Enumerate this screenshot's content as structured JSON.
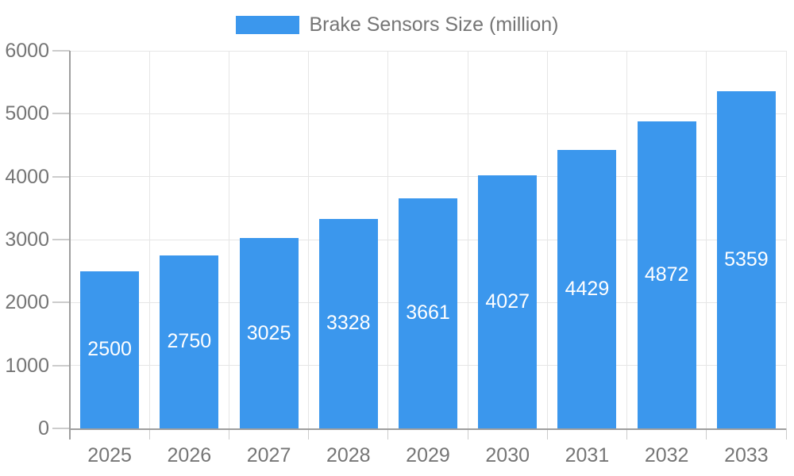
{
  "chart_data": {
    "type": "bar",
    "title": "",
    "legend_label": "Brake Sensors Size (million)",
    "legend_position": "top-center",
    "categories": [
      "2025",
      "2026",
      "2027",
      "2028",
      "2029",
      "2030",
      "2031",
      "2032",
      "2033"
    ],
    "series": [
      {
        "name": "Brake Sensors Size (million)",
        "values": [
          2500,
          2750,
          3025,
          3328,
          3661,
          4027,
          4429,
          4872,
          5359
        ]
      }
    ],
    "value_labels": [
      "2500",
      "2750",
      "3025",
      "3328",
      "3661",
      "4027",
      "4429",
      "4872",
      "5359"
    ],
    "value_label_position": "inside-center",
    "xlabel": "",
    "ylabel": "",
    "ylim": [
      0,
      6000
    ],
    "yticks": [
      0,
      1000,
      2000,
      3000,
      4000,
      5000,
      6000
    ],
    "ytick_labels": [
      "0",
      "1000",
      "2000",
      "3000",
      "4000",
      "5000",
      "6000"
    ],
    "grid": "on",
    "colors": {
      "bar": "#3B97ED",
      "value_label_text": "#FFFFFF",
      "axis_text": "#757575",
      "gridline": "#E6E6E6",
      "tick": "#CCCCCC",
      "axis_line": "#9E9E9E",
      "background": "#FFFFFF"
    }
  }
}
